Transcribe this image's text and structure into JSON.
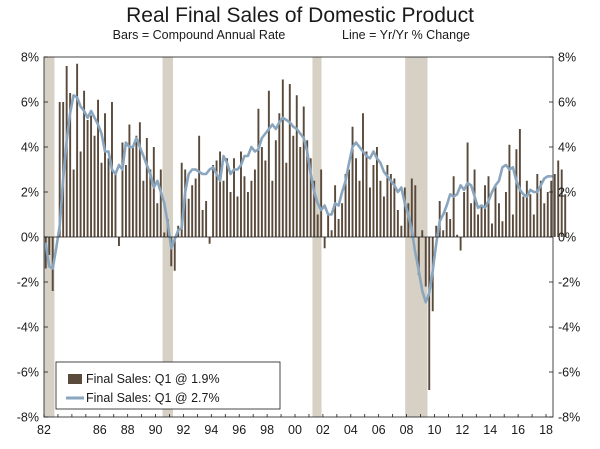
{
  "chart_data": {
    "type": "bar",
    "title": "Real Final Sales of Domestic Product",
    "subtitle_bars": "Bars = Compound Annual Rate",
    "subtitle_line": "Line = Yr/Yr % Change",
    "y_ticks": [
      "8%",
      "6%",
      "4%",
      "2%",
      "0%",
      "-2%",
      "-4%",
      "-6%",
      "-8%"
    ],
    "y_tick_values": [
      8,
      6,
      4,
      2,
      0,
      -2,
      -4,
      -6,
      -8
    ],
    "ylim": [
      -8,
      8
    ],
    "x_range": [
      1982.0,
      2018.5
    ],
    "x_ticks": [
      "82",
      "86",
      "88",
      "90",
      "92",
      "94",
      "96",
      "98",
      "00",
      "02",
      "04",
      "06",
      "08",
      "10",
      "12",
      "14",
      "16",
      "18"
    ],
    "x_tick_years": [
      1982,
      1986,
      1988,
      1990,
      1992,
      1994,
      1996,
      1998,
      2000,
      2002,
      2004,
      2006,
      2008,
      2010,
      2012,
      2014,
      2016,
      2018
    ],
    "grid": false,
    "legend_placement": "bottom-left",
    "recessions": [
      {
        "start": 1982.0,
        "end": 1982.75
      },
      {
        "start": 1990.5,
        "end": 1991.25
      },
      {
        "start": 2001.25,
        "end": 2001.9
      },
      {
        "start": 2007.9,
        "end": 2009.5
      }
    ],
    "bar_start": 1982.0,
    "bar_step": 0.25,
    "bar_values": [
      -1.4,
      -0.8,
      -2.4,
      0.0,
      6.0,
      6.0,
      7.6,
      6.4,
      3.0,
      7.7,
      3.8,
      6.5,
      5.2,
      5.4,
      4.5,
      6.1,
      3.3,
      5.5,
      3.5,
      6.0,
      2.8,
      -0.4,
      4.2,
      3.2,
      5.0,
      4.0,
      4.5,
      5.1,
      2.5,
      4.4,
      3.0,
      4.0,
      1.5,
      3.0,
      0.2,
      0.8,
      -1.3,
      -1.5,
      0.5,
      3.3,
      3.0,
      1.7,
      2.3,
      2.6,
      4.5,
      1.2,
      1.6,
      -0.3,
      3.2,
      3.4,
      3.8,
      2.5,
      3.5,
      2.0,
      3.5,
      1.8,
      3.8,
      2.7,
      2.0,
      2.5,
      3.0,
      5.7,
      4.0,
      3.4,
      6.5,
      2.5,
      4.3,
      5.5,
      7.0,
      3.3,
      6.8,
      4.5,
      6.3,
      4.0,
      5.8,
      4.3,
      3.5,
      2.5,
      1.0,
      3.0,
      -0.5,
      1.0,
      0.3,
      2.3,
      0.8,
      1.5,
      2.8,
      3.0,
      4.9,
      3.5,
      2.5,
      5.5,
      3.8,
      2.2,
      3.2,
      4.0,
      2.5,
      1.8,
      3.2,
      2.8,
      2.6,
      1.2,
      0.5,
      2.2,
      1.5,
      2.6,
      2.3,
      -1.7,
      0.3,
      -2.2,
      -6.8,
      -3.3,
      0.5,
      1.6,
      0.3,
      1.1,
      0.8,
      2.7,
      0.1,
      -0.6,
      2.0,
      4.2,
      1.5,
      3.0,
      1.0,
      1.4,
      2.3,
      2.7,
      0.6,
      2.3,
      1.5,
      0.7,
      2.0,
      4.1,
      1.0,
      3.9,
      4.8,
      1.8,
      2.5,
      1.9,
      1.0,
      2.8,
      2.5,
      1.5,
      2.0,
      2.5,
      2.8,
      3.4,
      3.0,
      1.9
    ],
    "line_points": [
      [
        1982.0,
        -0.3
      ],
      [
        1982.25,
        -1.3
      ],
      [
        1982.5,
        -1.4
      ],
      [
        1982.75,
        -0.5
      ],
      [
        1983.0,
        0.5
      ],
      [
        1983.25,
        2.6
      ],
      [
        1983.5,
        4.3
      ],
      [
        1983.75,
        5.5
      ],
      [
        1984.0,
        6.3
      ],
      [
        1984.25,
        6.2
      ],
      [
        1984.5,
        5.8
      ],
      [
        1984.75,
        5.6
      ],
      [
        1985.0,
        5.3
      ],
      [
        1985.25,
        5.6
      ],
      [
        1985.5,
        5.3
      ],
      [
        1985.75,
        5.0
      ],
      [
        1986.0,
        4.6
      ],
      [
        1986.25,
        3.8
      ],
      [
        1986.5,
        3.8
      ],
      [
        1986.75,
        3.0
      ],
      [
        1987.0,
        2.8
      ],
      [
        1987.25,
        3.2
      ],
      [
        1987.5,
        3.0
      ],
      [
        1987.75,
        4.2
      ],
      [
        1988.0,
        4.0
      ],
      [
        1988.25,
        4.0
      ],
      [
        1988.5,
        4.4
      ],
      [
        1988.75,
        4.0
      ],
      [
        1989.0,
        3.6
      ],
      [
        1989.25,
        3.2
      ],
      [
        1989.5,
        2.8
      ],
      [
        1989.75,
        2.2
      ],
      [
        1990.0,
        2.5
      ],
      [
        1990.25,
        2.0
      ],
      [
        1990.5,
        1.5
      ],
      [
        1990.75,
        0.6
      ],
      [
        1991.0,
        -0.5
      ],
      [
        1991.25,
        -0.1
      ],
      [
        1991.5,
        0.3
      ],
      [
        1991.75,
        0.4
      ],
      [
        1992.0,
        2.0
      ],
      [
        1992.25,
        2.8
      ],
      [
        1992.5,
        3.0
      ],
      [
        1992.75,
        3.0
      ],
      [
        1993.0,
        2.9
      ],
      [
        1993.25,
        2.8
      ],
      [
        1993.5,
        2.8
      ],
      [
        1993.75,
        3.0
      ],
      [
        1994.0,
        3.1
      ],
      [
        1994.25,
        2.8
      ],
      [
        1994.5,
        2.5
      ],
      [
        1994.75,
        3.6
      ],
      [
        1995.0,
        3.3
      ],
      [
        1995.25,
        2.8
      ],
      [
        1995.5,
        3.0
      ],
      [
        1995.75,
        3.0
      ],
      [
        1996.0,
        3.2
      ],
      [
        1996.25,
        3.6
      ],
      [
        1996.5,
        3.6
      ],
      [
        1996.75,
        4.0
      ],
      [
        1997.0,
        3.8
      ],
      [
        1997.25,
        3.9
      ],
      [
        1997.5,
        4.4
      ],
      [
        1997.75,
        4.6
      ],
      [
        1998.0,
        4.8
      ],
      [
        1998.25,
        5.0
      ],
      [
        1998.5,
        4.8
      ],
      [
        1998.75,
        5.1
      ],
      [
        1999.0,
        5.3
      ],
      [
        1999.25,
        5.2
      ],
      [
        1999.5,
        5.1
      ],
      [
        1999.75,
        4.9
      ],
      [
        2000.0,
        4.8
      ],
      [
        2000.25,
        4.6
      ],
      [
        2000.5,
        4.4
      ],
      [
        2000.75,
        3.8
      ],
      [
        2001.0,
        2.8
      ],
      [
        2001.25,
        2.0
      ],
      [
        2001.5,
        1.5
      ],
      [
        2001.75,
        1.2
      ],
      [
        2002.0,
        1.4
      ],
      [
        2002.25,
        1.0
      ],
      [
        2002.5,
        1.0
      ],
      [
        2002.75,
        1.5
      ],
      [
        2003.0,
        1.4
      ],
      [
        2003.25,
        2.0
      ],
      [
        2003.5,
        2.5
      ],
      [
        2003.75,
        3.3
      ],
      [
        2004.0,
        4.0
      ],
      [
        2004.25,
        4.2
      ],
      [
        2004.5,
        4.0
      ],
      [
        2004.75,
        3.8
      ],
      [
        2005.0,
        3.6
      ],
      [
        2005.25,
        3.5
      ],
      [
        2005.5,
        3.8
      ],
      [
        2005.75,
        3.5
      ],
      [
        2006.0,
        3.3
      ],
      [
        2006.25,
        2.9
      ],
      [
        2006.5,
        2.7
      ],
      [
        2006.75,
        2.5
      ],
      [
        2007.0,
        2.3
      ],
      [
        2007.25,
        2.0
      ],
      [
        2007.5,
        2.2
      ],
      [
        2007.75,
        1.5
      ],
      [
        2008.0,
        1.0
      ],
      [
        2008.25,
        0.3
      ],
      [
        2008.5,
        -0.7
      ],
      [
        2008.75,
        -1.5
      ],
      [
        2009.0,
        -2.4
      ],
      [
        2009.25,
        -2.9
      ],
      [
        2009.5,
        -2.5
      ],
      [
        2009.75,
        -1.5
      ],
      [
        2010.0,
        -0.3
      ],
      [
        2010.25,
        0.7
      ],
      [
        2010.5,
        1.0
      ],
      [
        2010.75,
        1.4
      ],
      [
        2011.0,
        1.9
      ],
      [
        2011.25,
        1.8
      ],
      [
        2011.5,
        1.9
      ],
      [
        2011.75,
        2.3
      ],
      [
        2012.0,
        2.1
      ],
      [
        2012.25,
        2.4
      ],
      [
        2012.5,
        2.3
      ],
      [
        2012.75,
        1.8
      ],
      [
        2013.0,
        1.3
      ],
      [
        2013.25,
        1.4
      ],
      [
        2013.5,
        1.3
      ],
      [
        2013.75,
        1.6
      ],
      [
        2014.0,
        2.0
      ],
      [
        2014.25,
        2.3
      ],
      [
        2014.5,
        2.5
      ],
      [
        2014.75,
        3.1
      ],
      [
        2015.0,
        3.2
      ],
      [
        2015.25,
        3.0
      ],
      [
        2015.5,
        3.1
      ],
      [
        2015.75,
        2.5
      ],
      [
        2016.0,
        2.1
      ],
      [
        2016.25,
        1.9
      ],
      [
        2016.5,
        1.8
      ],
      [
        2016.75,
        2.1
      ],
      [
        2017.0,
        2.0
      ],
      [
        2017.25,
        2.0
      ],
      [
        2017.5,
        2.3
      ],
      [
        2017.75,
        2.6
      ],
      [
        2018.0,
        2.7
      ],
      [
        2018.25,
        2.7
      ]
    ],
    "series": [
      {
        "name": "Final Sales: Q1 @ 1.9%",
        "kind": "bar",
        "color": "#5a4a3c"
      },
      {
        "name": "Final Sales: Q1 @ 2.7%",
        "kind": "line",
        "color": "#8aa6bf"
      }
    ],
    "colors": {
      "bar": "#5a4a3c",
      "line": "#8aa6bf",
      "recession": "#d6d1c4",
      "axis": "#1a1a1a"
    }
  }
}
